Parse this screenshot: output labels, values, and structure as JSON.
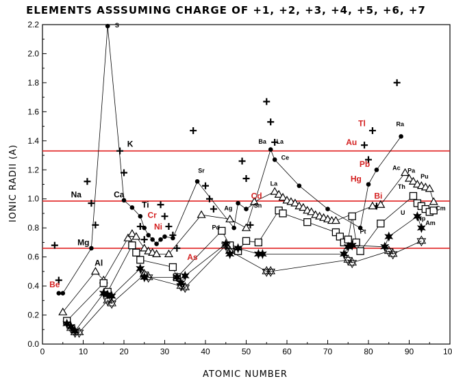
{
  "chart_data": {
    "type": "scatter",
    "title": "ELEMENTS ASSSUMING CHARGE OF  +1, +2, +3, +4, +5, +6, +7",
    "xlabel": "ATOMIC NUMBER",
    "ylabel": "IONIC RADII (A)",
    "xlim": [
      0,
      100
    ],
    "ylim": [
      0,
      2.2
    ],
    "x_ticks": [
      0,
      10,
      20,
      30,
      40,
      50,
      60,
      70,
      80,
      90,
      100
    ],
    "y_ticks": [
      0.0,
      0.2,
      0.4,
      0.6,
      0.8,
      1.0,
      1.2,
      1.4,
      1.6,
      1.8,
      2.0,
      2.2
    ],
    "y_tick_labels": [
      "0.0",
      "0.2",
      "0.4",
      "0.6",
      "0.8",
      "1.0",
      "1.2",
      "1.4",
      "1.6",
      "1.8",
      "2.0",
      "2.2"
    ],
    "grid": false,
    "reference_lines": [
      {
        "y": 1.33,
        "color": "#e02020"
      },
      {
        "y": 0.985,
        "color": "#e02020"
      },
      {
        "y": 0.66,
        "color": "#e02020"
      }
    ],
    "series": [
      {
        "marker": "plus",
        "x": [
          3,
          4,
          11,
          12,
          13,
          19,
          20,
          24,
          25,
          29,
          30,
          31,
          32,
          33,
          37,
          40,
          41,
          42,
          49,
          50,
          51,
          55,
          56,
          57,
          79,
          80,
          81,
          82,
          87
        ],
        "y": [
          0.68,
          0.44,
          1.12,
          0.97,
          0.82,
          1.33,
          1.18,
          0.81,
          0.72,
          0.96,
          0.88,
          0.81,
          0.75,
          0.66,
          1.47,
          1.09,
          1.0,
          0.93,
          1.26,
          1.14,
          0.82,
          1.67,
          1.53,
          1.39,
          1.37,
          1.27,
          1.47,
          0.95,
          1.8
        ]
      },
      {
        "marker": "dot-line",
        "x": [
          4,
          5,
          12,
          16,
          20,
          22,
          24,
          25,
          26,
          27,
          28,
          29,
          30,
          32,
          38,
          47,
          48,
          50,
          52,
          56,
          57,
          63,
          70,
          78,
          80,
          82,
          88
        ],
        "y": [
          0.35,
          0.35,
          0.66,
          2.19,
          0.99,
          0.94,
          0.88,
          0.8,
          0.75,
          0.72,
          0.69,
          0.72,
          0.74,
          0.73,
          1.12,
          0.8,
          0.97,
          0.93,
          0.97,
          1.34,
          1.27,
          1.09,
          0.93,
          0.8,
          1.1,
          1.2,
          1.43
        ]
      },
      {
        "marker": "triangle",
        "x": [
          5,
          13,
          15,
          21,
          22,
          23,
          25,
          26,
          27,
          28,
          31,
          39,
          46,
          50,
          52,
          57,
          58,
          59,
          60,
          61,
          62,
          63,
          64,
          65,
          66,
          67,
          68,
          69,
          70,
          71,
          72,
          81,
          83,
          89,
          90,
          91,
          92,
          93,
          94,
          95,
          96
        ],
        "y": [
          0.22,
          0.5,
          0.44,
          0.73,
          0.76,
          0.74,
          0.66,
          0.64,
          0.63,
          0.62,
          0.62,
          0.89,
          0.86,
          0.8,
          0.98,
          1.05,
          1.03,
          1.01,
          0.99,
          0.98,
          0.97,
          0.95,
          0.94,
          0.92,
          0.91,
          0.89,
          0.88,
          0.87,
          0.86,
          0.85,
          0.85,
          0.95,
          0.96,
          1.18,
          1.14,
          1.12,
          1.1,
          1.09,
          1.08,
          1.07,
          0.98
        ]
      },
      {
        "marker": "square",
        "x": [
          6,
          15,
          16,
          22,
          23,
          24,
          32,
          33,
          44,
          46,
          48,
          50,
          53,
          58,
          59,
          65,
          72,
          73,
          74,
          75,
          76,
          77,
          78,
          83,
          91,
          92,
          93,
          94,
          95,
          96
        ],
        "y": [
          0.16,
          0.42,
          0.36,
          0.68,
          0.63,
          0.58,
          0.53,
          0.46,
          0.78,
          0.68,
          0.64,
          0.71,
          0.7,
          0.92,
          0.9,
          0.84,
          0.77,
          0.74,
          0.7,
          0.72,
          0.88,
          0.7,
          0.64,
          0.83,
          1.02,
          0.97,
          0.95,
          0.93,
          0.91,
          0.92
        ]
      },
      {
        "marker": "star",
        "x": [
          6,
          7,
          8,
          15,
          16,
          17,
          24,
          25,
          33,
          34,
          35,
          45,
          46,
          48,
          53,
          54,
          74,
          75,
          76,
          84,
          85,
          92,
          93
        ],
        "y": [
          0.14,
          0.12,
          0.09,
          0.35,
          0.34,
          0.33,
          0.52,
          0.46,
          0.46,
          0.42,
          0.47,
          0.69,
          0.62,
          0.66,
          0.62,
          0.62,
          0.62,
          0.67,
          0.68,
          0.67,
          0.74,
          0.88,
          0.8
        ]
      },
      {
        "marker": "star-hollow",
        "x": [
          7,
          8,
          9,
          16,
          17,
          25,
          26,
          34,
          35,
          45,
          46,
          55,
          56,
          75,
          76,
          85,
          86,
          93
        ],
        "y": [
          0.11,
          0.08,
          0.08,
          0.3,
          0.28,
          0.48,
          0.46,
          0.4,
          0.39,
          0.68,
          0.64,
          0.5,
          0.5,
          0.58,
          0.56,
          0.64,
          0.62,
          0.71
        ]
      }
    ],
    "annotations": [
      {
        "text": "S",
        "x": 17.8,
        "y": 2.18,
        "color": "#000000",
        "size": 9
      },
      {
        "text": "K",
        "x": 20.8,
        "y": 1.36,
        "color": "#000000",
        "size": 12
      },
      {
        "text": "Ca",
        "x": 17.5,
        "y": 1.01,
        "color": "#000000",
        "size": 12
      },
      {
        "text": "Ti",
        "x": 24.4,
        "y": 0.94,
        "color": "#000000",
        "size": 12
      },
      {
        "text": "Cr",
        "x": 25.8,
        "y": 0.87,
        "color": "#d42020",
        "size": 12
      },
      {
        "text": "Ni",
        "x": 27.4,
        "y": 0.79,
        "color": "#d42020",
        "size": 12
      },
      {
        "text": "As",
        "x": 35.5,
        "y": 0.58,
        "color": "#d42020",
        "size": 12
      },
      {
        "text": "Na",
        "x": 7.0,
        "y": 1.01,
        "color": "#000000",
        "size": 12
      },
      {
        "text": "Mg",
        "x": 8.6,
        "y": 0.68,
        "color": "#000000",
        "size": 12
      },
      {
        "text": "Al",
        "x": 12.8,
        "y": 0.54,
        "color": "#000000",
        "size": 12
      },
      {
        "text": "Be",
        "x": 1.7,
        "y": 0.39,
        "color": "#d42020",
        "size": 12
      },
      {
        "text": "Sr",
        "x": 38.2,
        "y": 1.18,
        "color": "#000000",
        "size": 9
      },
      {
        "text": "Ag",
        "x": 44.6,
        "y": 0.92,
        "color": "#000000",
        "size": 9
      },
      {
        "text": "Pd",
        "x": 41.6,
        "y": 0.79,
        "color": "#000000",
        "size": 9
      },
      {
        "text": "Cd",
        "x": 51.2,
        "y": 1.0,
        "color": "#d42020",
        "size": 12
      },
      {
        "text": "Sn",
        "x": 51.9,
        "y": 0.94,
        "color": "#000000",
        "size": 9
      },
      {
        "text": "Ba",
        "x": 53.0,
        "y": 1.38,
        "color": "#000000",
        "size": 9
      },
      {
        "text": "La",
        "x": 57.4,
        "y": 1.38,
        "color": "#000000",
        "size": 9
      },
      {
        "text": "Ce",
        "x": 58.6,
        "y": 1.27,
        "color": "#000000",
        "size": 9
      },
      {
        "text": "La",
        "x": 55.9,
        "y": 1.09,
        "color": "#000000",
        "size": 9
      },
      {
        "text": "Pt",
        "x": 77.9,
        "y": 0.76,
        "color": "#000000",
        "size": 9
      },
      {
        "text": "Tl",
        "x": 77.5,
        "y": 1.5,
        "color": "#d42020",
        "size": 12
      },
      {
        "text": "Au",
        "x": 74.5,
        "y": 1.37,
        "color": "#d42020",
        "size": 12
      },
      {
        "text": "Pb",
        "x": 77.8,
        "y": 1.22,
        "color": "#d42020",
        "size": 12
      },
      {
        "text": "Hg",
        "x": 75.6,
        "y": 1.12,
        "color": "#d42020",
        "size": 12
      },
      {
        "text": "Bi",
        "x": 81.4,
        "y": 1.0,
        "color": "#d42020",
        "size": 12
      },
      {
        "text": "Ra",
        "x": 86.8,
        "y": 1.5,
        "color": "#000000",
        "size": 9
      },
      {
        "text": "Ac",
        "x": 85.9,
        "y": 1.2,
        "color": "#000000",
        "size": 9
      },
      {
        "text": "Pa",
        "x": 89.6,
        "y": 1.18,
        "color": "#000000",
        "size": 9
      },
      {
        "text": "Th",
        "x": 87.2,
        "y": 1.07,
        "color": "#000000",
        "size": 9
      },
      {
        "text": "Pu",
        "x": 92.8,
        "y": 1.14,
        "color": "#000000",
        "size": 9
      },
      {
        "text": "U",
        "x": 87.9,
        "y": 0.89,
        "color": "#000000",
        "size": 9
      },
      {
        "text": "Np",
        "x": 92.0,
        "y": 0.85,
        "color": "#000000",
        "size": 9
      },
      {
        "text": "Am",
        "x": 94.0,
        "y": 0.82,
        "color": "#000000",
        "size": 9
      },
      {
        "text": "Cm",
        "x": 96.5,
        "y": 0.92,
        "color": "#000000",
        "size": 9
      }
    ],
    "colors": {
      "reference_line": "#e02020",
      "marker": "#000000",
      "red_label": "#d42020"
    }
  }
}
